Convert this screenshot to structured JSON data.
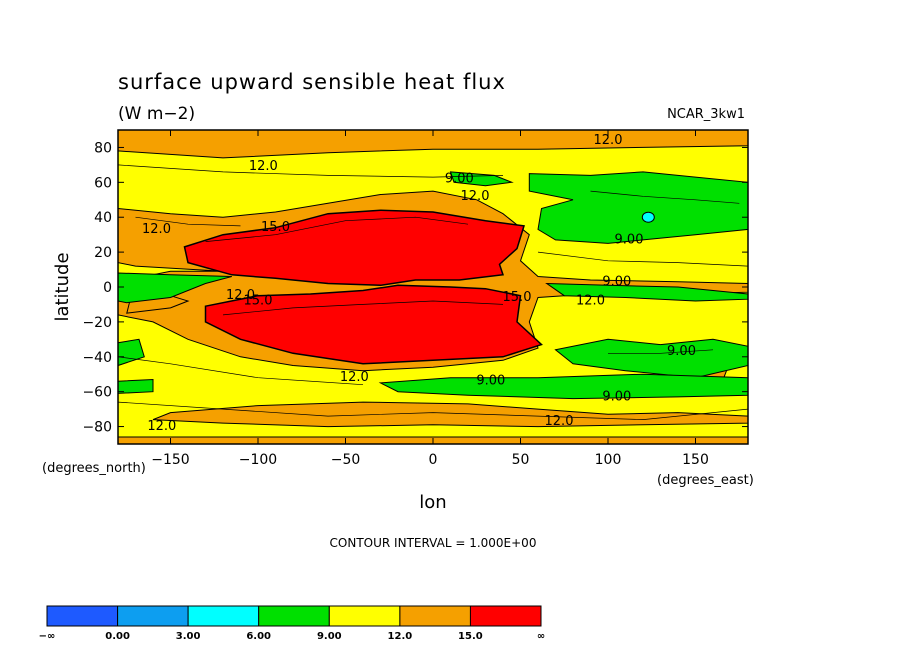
{
  "chart_data": {
    "type": "contour",
    "title": "surface upward sensible heat flux",
    "units": "(W m−2)",
    "dataset": "NCAR_3kw1",
    "xlabel": "lon",
    "ylabel": "latitude",
    "xunits": "(degrees_east)",
    "yunits": "(degrees_north)",
    "xlim": [
      -180,
      180
    ],
    "ylim": [
      -90,
      90
    ],
    "xticks": [
      -150,
      -100,
      -50,
      0,
      50,
      100,
      150
    ],
    "yticks": [
      80,
      60,
      40,
      20,
      0,
      -20,
      -40,
      -60,
      -80
    ],
    "xticklabels": [
      "−150",
      "−100",
      "−50",
      "0",
      "50",
      "100",
      "150"
    ],
    "yticklabels": [
      "80",
      "60",
      "40",
      "20",
      "0",
      "−20",
      "−40",
      "−60",
      "−80"
    ],
    "contour_interval_text": "CONTOUR INTERVAL = 1.000E+00",
    "contour_labels": [
      {
        "text": "12.0",
        "lon": -97,
        "lat": 69
      },
      {
        "text": "12.0",
        "lon": 100,
        "lat": 84
      },
      {
        "text": "9.00",
        "lon": 15,
        "lat": 62
      },
      {
        "text": "12.0",
        "lon": 24,
        "lat": 52
      },
      {
        "text": "12.0",
        "lon": -158,
        "lat": 33
      },
      {
        "text": "15.0",
        "lon": -90,
        "lat": 34
      },
      {
        "text": "9.00",
        "lon": 112,
        "lat": 27
      },
      {
        "text": "9.00",
        "lon": 105,
        "lat": 3
      },
      {
        "text": "12.0",
        "lon": -110,
        "lat": -5
      },
      {
        "text": "15.0",
        "lon": -100,
        "lat": -8
      },
      {
        "text": "15.0",
        "lon": 48,
        "lat": -6
      },
      {
        "text": "12.0",
        "lon": 90,
        "lat": -8
      },
      {
        "text": "9.00",
        "lon": 142,
        "lat": -37
      },
      {
        "text": "12.0",
        "lon": -45,
        "lat": -52
      },
      {
        "text": "9.00",
        "lon": 33,
        "lat": -54
      },
      {
        "text": "9.00",
        "lon": 105,
        "lat": -63
      },
      {
        "text": "12.0",
        "lon": -155,
        "lat": -80
      },
      {
        "text": "12.0",
        "lon": 72,
        "lat": -77
      }
    ],
    "colorbar": {
      "labels": [
        "−∞",
        "0.00",
        "3.00",
        "6.00",
        "9.00",
        "12.0",
        "15.0",
        "∞"
      ],
      "colors": [
        "#1e5aff",
        "#0d9ef0",
        "#00ffff",
        "#00e000",
        "#ffff00",
        "#f5a000",
        "#ff0000"
      ]
    },
    "level_colors": {
      "lt9": "#00e000",
      "9to12": "#ffff00",
      "12to15": "#f5a000",
      "gt15": "#ff0000",
      "lt6": "#00ffff"
    }
  }
}
